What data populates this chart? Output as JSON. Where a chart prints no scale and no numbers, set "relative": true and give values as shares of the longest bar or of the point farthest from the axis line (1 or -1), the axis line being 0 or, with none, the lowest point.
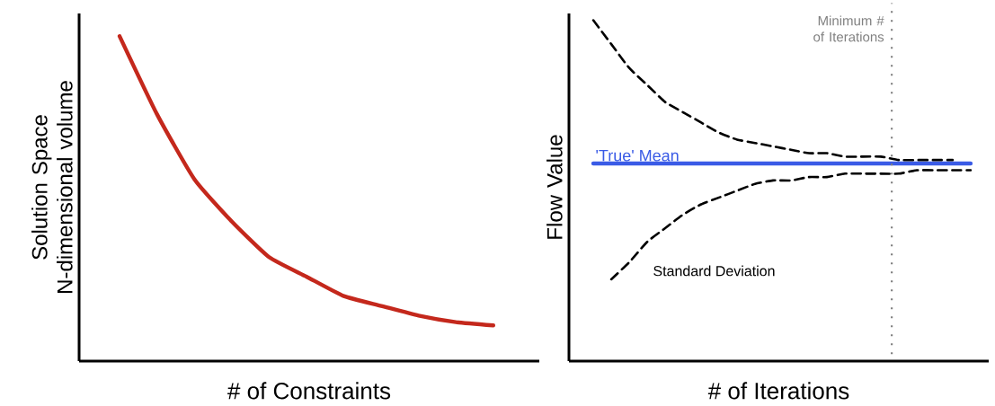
{
  "chart_data": [
    {
      "type": "line",
      "relative": true,
      "xlabel": "# of Constraints",
      "ylabel": "Solution Space N-dimensional volume",
      "categories": [
        null,
        null,
        null,
        null,
        null,
        null,
        null,
        null,
        null,
        null,
        null
      ],
      "series": [
        {
          "color": "#c4281c",
          "line_style": "solid",
          "values": [
            1,
            0.76,
            0.56,
            0.43,
            0.32,
            0.26,
            0.2,
            0.17,
            0.14,
            0.12,
            0.11
          ]
        }
      ]
    },
    {
      "type": "line",
      "relative": true,
      "xlabel": "# of Iterations",
      "ylabel": "Flow Value",
      "categories": [
        null,
        null,
        null,
        null,
        null,
        null,
        null,
        null,
        null,
        null,
        null,
        null,
        null,
        null,
        null,
        null,
        null,
        null,
        null,
        null,
        null,
        null
      ],
      "series": [
        {
          "name": "'True' Mean",
          "color": "#3a5be6",
          "line_style": "solid",
          "values": [
            0.58,
            0.58,
            0.58,
            0.58,
            0.58,
            0.58,
            0.58,
            0.58,
            0.58,
            0.58,
            0.58,
            0.58,
            0.58,
            0.58,
            0.58,
            0.58,
            0.58,
            0.58,
            0.58,
            0.58,
            0.58,
            0.58
          ]
        },
        {
          "color": "#000000",
          "line_style": "dashed",
          "values": [
            1,
            0.93,
            0.86,
            0.81,
            0.76,
            0.73,
            0.7,
            0.67,
            0.65,
            0.64,
            0.63,
            0.62,
            0.61,
            0.61,
            0.6,
            0.6,
            0.6,
            0.59,
            0.59,
            0.59,
            0.59,
            null
          ]
        },
        {
          "name": "Standard Deviation",
          "color": "#000000",
          "line_style": "dashed",
          "values": [
            null,
            0.24,
            0.29,
            0.35,
            0.39,
            0.43,
            0.46,
            0.48,
            0.5,
            0.52,
            0.53,
            0.53,
            0.54,
            0.54,
            0.55,
            0.55,
            0.55,
            0.55,
            0.56,
            0.56,
            0.56,
            0.56
          ]
        }
      ],
      "annotations": [
        "Minimum # of Iterations"
      ]
    }
  ]
}
